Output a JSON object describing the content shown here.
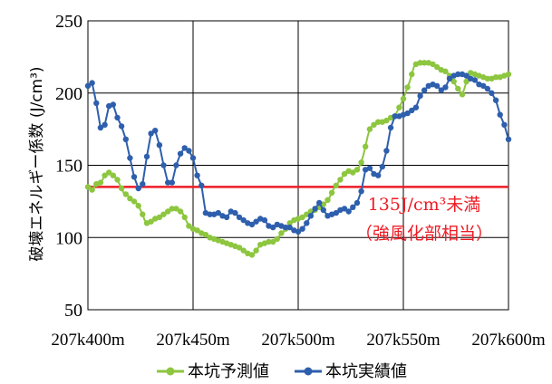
{
  "chart_data": {
    "type": "line",
    "xlabel": "",
    "ylabel": "破壊エネルギー係数 (J/cm³)",
    "ylim": [
      50,
      250
    ],
    "yticks": [
      "50",
      "100",
      "150",
      "200",
      "250"
    ],
    "xticks": [
      "207k400m",
      "207k450m",
      "207k500m",
      "207k550m",
      "207k600m"
    ],
    "grid": true,
    "legend_position": "bottom",
    "threshold": {
      "value": 135,
      "color": "#ee1c25",
      "label_line1": "135J/cm³未満",
      "label_line2": "（強風化部相当）"
    },
    "series": [
      {
        "name": "本坑予測値",
        "color": "#8dc63f",
        "x": [
          400,
          401,
          402,
          403,
          404,
          405,
          406,
          407,
          408,
          409,
          410,
          411,
          412,
          413,
          414,
          415,
          416,
          417,
          418,
          419,
          420,
          421,
          422,
          423,
          424,
          425,
          426,
          427,
          428,
          429,
          430,
          431,
          432,
          433,
          434,
          435,
          436,
          437,
          438,
          439,
          440,
          441,
          442,
          443,
          444,
          445,
          446,
          447,
          448,
          449,
          450,
          451,
          452,
          453,
          454,
          455,
          456,
          457,
          458,
          459,
          460,
          461,
          462,
          463,
          464,
          465,
          466,
          467,
          468,
          469,
          470,
          471,
          472,
          473,
          474,
          475,
          476,
          477,
          478,
          479,
          480,
          481,
          482,
          483,
          484,
          485,
          486,
          487,
          488,
          489,
          490,
          491,
          492,
          493,
          494,
          495,
          496,
          497,
          498,
          499,
          500,
          501,
          502,
          503,
          504,
          505,
          506,
          507,
          508,
          509,
          510,
          511,
          512,
          513,
          514,
          515,
          516,
          517,
          518,
          519,
          520,
          521,
          522,
          523,
          524,
          525,
          526,
          527,
          528,
          529,
          530,
          531,
          532,
          533,
          534,
          535,
          536,
          537,
          538,
          539,
          540,
          541,
          542,
          543,
          544,
          545,
          546,
          547,
          548,
          549,
          550,
          551,
          552,
          553,
          554,
          555,
          556,
          557,
          558,
          559,
          560,
          561,
          562,
          563,
          564,
          565,
          566,
          567,
          568,
          569,
          570,
          571,
          572,
          573,
          574,
          575,
          576,
          577,
          578,
          579,
          580,
          581,
          582,
          583,
          584,
          585,
          586,
          587,
          588,
          589,
          590,
          591,
          592,
          593,
          594,
          595,
          596,
          597,
          598,
          599,
          600
        ],
        "values": [
          135,
          134,
          133,
          135,
          137,
          138,
          138,
          140,
          143,
          144,
          145,
          144,
          143,
          142,
          140,
          137,
          134,
          131,
          130,
          129,
          127,
          126,
          125,
          124,
          122,
          119,
          116,
          112,
          110,
          110,
          111,
          112,
          113,
          114,
          114,
          115,
          116,
          117,
          118,
          119,
          120,
          120,
          120,
          119,
          118,
          117,
          114,
          111,
          108,
          107,
          106,
          105,
          105,
          104,
          103,
          103,
          102,
          101,
          100,
          100,
          99,
          99,
          98,
          97,
          97,
          96,
          96,
          95,
          95,
          94,
          94,
          93,
          93,
          92,
          91,
          90,
          89,
          88,
          88,
          89,
          91,
          93,
          95,
          96,
          96,
          96,
          97,
          97,
          97,
          98,
          99,
          101,
          103,
          104,
          106,
          108,
          110,
          111,
          112,
          113,
          113,
          114,
          114,
          115,
          116,
          117,
          118,
          119,
          119,
          120,
          121,
          122,
          123,
          124,
          126,
          128,
          131,
          134,
          136,
          138,
          140,
          142,
          144,
          146,
          146,
          145,
          145,
          146,
          147,
          149,
          152,
          157,
          163,
          170,
          175,
          177,
          178,
          179,
          180,
          180,
          180,
          181,
          181,
          182,
          183,
          183,
          184,
          187,
          190,
          193,
          196,
          200,
          204,
          208,
          213,
          218,
          220,
          221,
          221,
          221,
          221,
          221,
          221,
          221,
          220,
          219,
          218,
          217,
          216,
          216,
          215,
          214,
          212,
          210,
          208,
          205,
          203,
          201,
          199,
          203,
          208,
          212,
          214,
          214,
          213,
          212,
          212,
          211,
          211,
          210,
          210,
          210,
          210,
          210,
          211,
          211,
          211,
          211,
          212,
          212,
          213
        ],
        "marker_step": 2
      },
      {
        "name": "本坑実績値",
        "color": "#2e5fad",
        "x": [
          400,
          402,
          404,
          406,
          408,
          410,
          412,
          414,
          416,
          418,
          420,
          422,
          424,
          426,
          428,
          430,
          432,
          434,
          436,
          438,
          440,
          442,
          444,
          446,
          448,
          450,
          452,
          454,
          456,
          458,
          460,
          462,
          464,
          466,
          468,
          470,
          472,
          474,
          476,
          478,
          480,
          482,
          484,
          486,
          488,
          490,
          492,
          494,
          496,
          498,
          500,
          502,
          504,
          506,
          508,
          510,
          512,
          514,
          516,
          518,
          520,
          522,
          524,
          526,
          528,
          530,
          532,
          534,
          536,
          538,
          540,
          542,
          544,
          546,
          548,
          550,
          552,
          554,
          556,
          558,
          560,
          562,
          564,
          566,
          568,
          570,
          572,
          574,
          576,
          578,
          580,
          582,
          584,
          586,
          588,
          590,
          592,
          594,
          596,
          598,
          600
        ],
        "values": [
          205,
          207,
          193,
          176,
          178,
          191,
          192,
          183,
          177,
          168,
          155,
          142,
          134,
          137,
          156,
          172,
          174,
          164,
          150,
          138,
          138,
          150,
          158,
          162,
          160,
          155,
          143,
          136,
          117,
          116,
          116,
          117,
          115,
          114,
          118,
          117,
          114,
          112,
          110,
          109,
          111,
          113,
          112,
          108,
          107,
          109,
          108,
          107,
          107,
          105,
          104,
          106,
          110,
          115,
          120,
          124,
          119,
          115,
          116,
          117,
          119,
          120,
          118,
          121,
          124,
          132,
          147,
          148,
          144,
          143,
          149,
          160,
          176,
          184,
          184,
          185,
          186,
          188,
          190,
          198,
          202,
          205,
          206,
          205,
          202,
          204,
          210,
          212,
          213,
          213,
          212,
          210,
          209,
          206,
          205,
          203,
          200,
          195,
          185,
          178,
          168
        ]
      }
    ]
  }
}
